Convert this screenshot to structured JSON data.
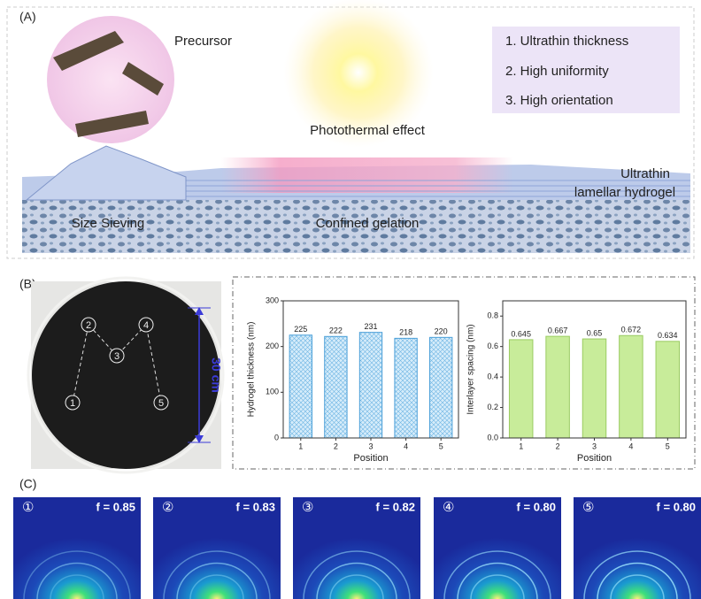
{
  "panel_a": {
    "label": "(A)",
    "precursor": "Precursor",
    "photothermal": "Photothermal effect",
    "features": [
      "1. Ultrathin thickness",
      "2. High uniformity",
      "3. High orientation"
    ],
    "size_sieving": "Size Sieving",
    "confined_gelation": "Confined gelation",
    "hydrogel_line1": "Ultrathin",
    "hydrogel_line2": "lamellar hydrogel"
  },
  "panel_b": {
    "label": "(B)",
    "positions": [
      "1",
      "2",
      "3",
      "4",
      "5"
    ],
    "scale": "30 cm"
  },
  "chart_data": [
    {
      "type": "bar",
      "ylabel": "Hydrogel thickness (nm)",
      "xlabel": "Position",
      "categories": [
        "1",
        "2",
        "3",
        "4",
        "5"
      ],
      "values": [
        225,
        222,
        231,
        218,
        220
      ],
      "color": "#bfe0f5",
      "edge": "#4a9fd8",
      "hatch": true,
      "ylim": [
        0,
        300
      ],
      "yticks": [
        0,
        100,
        200,
        300
      ]
    },
    {
      "type": "bar",
      "ylabel": "Interlayer spacing (nm)",
      "xlabel": "Position",
      "categories": [
        "1",
        "2",
        "3",
        "4",
        "5"
      ],
      "values": [
        0.645,
        0.667,
        0.65,
        0.672,
        0.634
      ],
      "color": "#c8ec9a",
      "edge": "#9acb62",
      "hatch": false,
      "ylim": [
        0,
        0.9
      ],
      "yticks": [
        {
          "value": 0,
          "label": "0.0"
        },
        0.2,
        0.4,
        0.6,
        0.8
      ]
    }
  ],
  "panel_c": {
    "label": "(C)",
    "images": [
      {
        "number": "①",
        "f": "f = 0.85"
      },
      {
        "number": "②",
        "f": "f = 0.83"
      },
      {
        "number": "③",
        "f": "f = 0.82"
      },
      {
        "number": "④",
        "f": "f = 0.80"
      },
      {
        "number": "⑤",
        "f": "f = 0.80"
      }
    ]
  }
}
